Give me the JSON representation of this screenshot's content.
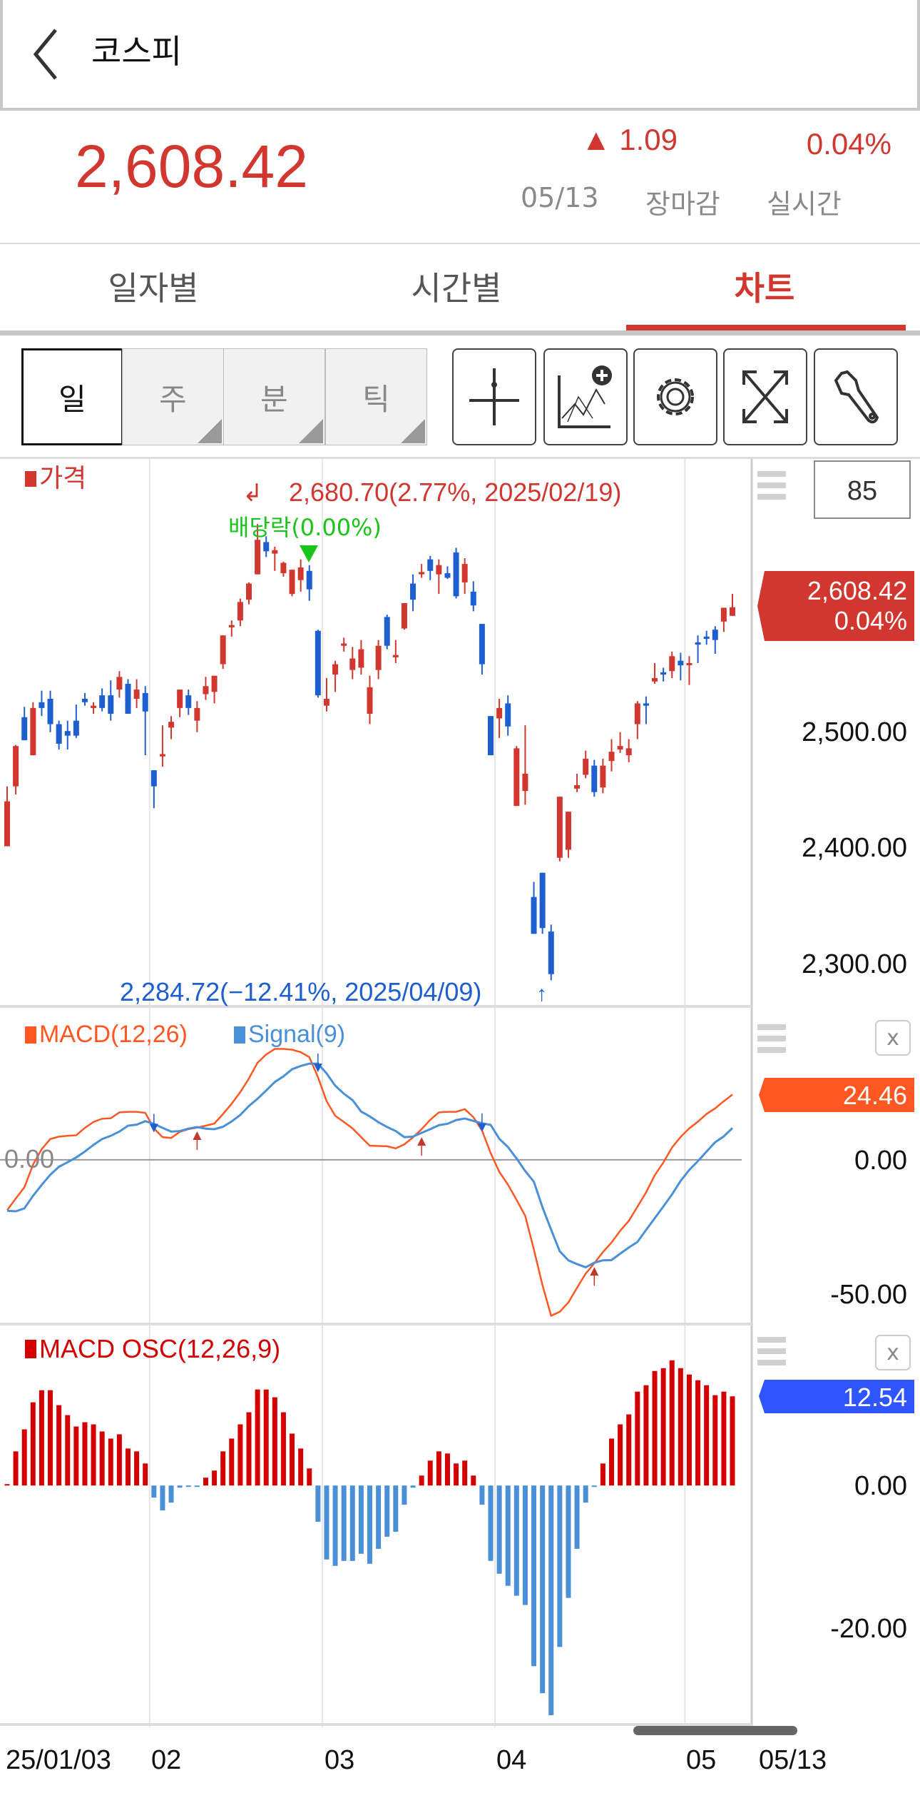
{
  "header": {
    "title": "코스피",
    "back_icon": "chevron-left-icon"
  },
  "quote": {
    "price": "2,608.42",
    "change_arrow": "▲",
    "change": "1.09",
    "rate": "0.04%",
    "date": "05/13",
    "session": "장마감",
    "mode": "실시간",
    "color_up": "#d2372f"
  },
  "tabs": [
    {
      "label": "일자별",
      "active": false
    },
    {
      "label": "시간별",
      "active": false
    },
    {
      "label": "차트",
      "active": true
    }
  ],
  "periods": [
    {
      "label": "일",
      "selected": true
    },
    {
      "label": "주",
      "selected": false
    },
    {
      "label": "분",
      "selected": false
    },
    {
      "label": "틱",
      "selected": false
    }
  ],
  "tools": [
    {
      "name": "crosshair-icon"
    },
    {
      "name": "add-indicator-icon"
    },
    {
      "name": "settings-gear-icon"
    },
    {
      "name": "expand-icon"
    },
    {
      "name": "wrench-icon"
    }
  ],
  "price_panel": {
    "legend": "가격",
    "count": "85",
    "last_price_tag": "2,608.42",
    "last_rate_tag": "0.04%",
    "high_note": "2,680.70(2.77%, 2025/02/19)",
    "low_note": "2,284.72(−12.41%, 2025/04/09)",
    "dividend_note": "배당락(0.00%)",
    "yticks": [
      "2,500.00",
      "2,400.00",
      "2,300.00"
    ]
  },
  "macd_panel": {
    "legend_macd": "MACD(12,26)",
    "legend_signal": "Signal(9)",
    "zero_label": "0.00",
    "tag": "24.46",
    "yticks": [
      "0.00",
      "-50.00"
    ],
    "close": "x"
  },
  "osc_panel": {
    "legend": "MACD OSC(12,26,9)",
    "tag": "12.54",
    "yticks": [
      "0.00",
      "-20.00"
    ],
    "close": "x"
  },
  "xaxis": {
    "labels": [
      "25/01/03",
      "02",
      "03",
      "04",
      "05"
    ],
    "current": "05/13"
  },
  "colors": {
    "up": "#d2372f",
    "down": "#1e5fd0",
    "macd": "#ff5722",
    "signal": "#4a90d9",
    "osc_up": "#d40000",
    "osc_down": "#4a90d9",
    "osc_tag": "#2f55ff",
    "dividend": "#1bc41b"
  },
  "chart_data": [
    {
      "type": "candlestick",
      "title": "가격",
      "yticks": [
        2500,
        2400,
        2300
      ],
      "ylim": [
        2262,
        2739
      ],
      "month_breaks_after": [
        17,
        37,
        57,
        79
      ],
      "ohlc": [
        [
          2401,
          2453,
          2401,
          2440
        ],
        [
          2453,
          2489,
          2446,
          2488
        ],
        [
          2513,
          2522,
          2493,
          2493
        ],
        [
          2480,
          2526,
          2480,
          2521
        ],
        [
          2526,
          2536,
          2514,
          2521
        ],
        [
          2529,
          2536,
          2500,
          2507
        ],
        [
          2507,
          2510,
          2485,
          2490
        ],
        [
          2501,
          2510,
          2485,
          2497
        ],
        [
          2510,
          2524,
          2495,
          2497
        ],
        [
          2529,
          2534,
          2523,
          2526
        ],
        [
          2521,
          2526,
          2516,
          2523
        ],
        [
          2532,
          2538,
          2518,
          2521
        ],
        [
          2532,
          2545,
          2510,
          2516
        ],
        [
          2537,
          2553,
          2530,
          2548
        ],
        [
          2542,
          2546,
          2516,
          2516
        ],
        [
          2529,
          2546,
          2521,
          2537
        ],
        [
          2534,
          2540,
          2480,
          2518
        ],
        [
          2467,
          2467,
          2434,
          2453
        ],
        [
          2479,
          2506,
          2470,
          2481
        ],
        [
          2504,
          2514,
          2494,
          2509
        ],
        [
          2521,
          2537,
          2513,
          2537
        ],
        [
          2532,
          2537,
          2515,
          2521
        ],
        [
          2510,
          2527,
          2500,
          2521
        ],
        [
          2533,
          2548,
          2528,
          2540
        ],
        [
          2535,
          2549,
          2525,
          2549
        ],
        [
          2559,
          2584,
          2555,
          2584
        ],
        [
          2591,
          2597,
          2583,
          2593
        ],
        [
          2597,
          2616,
          2592,
          2613
        ],
        [
          2615,
          2630,
          2611,
          2629
        ],
        [
          2637,
          2680.7,
          2637,
          2667
        ],
        [
          2665,
          2670,
          2652,
          2657
        ],
        [
          2655,
          2661,
          2640,
          2658
        ],
        [
          2638,
          2648,
          2635,
          2647
        ],
        [
          2620,
          2641,
          2618,
          2641
        ],
        [
          2632,
          2650,
          2622,
          2643
        ],
        [
          2640,
          2645,
          2614,
          2624
        ],
        [
          2588,
          2589,
          2530,
          2532
        ],
        [
          2523,
          2547,
          2518,
          2529
        ],
        [
          2550,
          2562,
          2535,
          2559
        ],
        [
          2575,
          2582,
          2570,
          2577
        ],
        [
          2554,
          2574,
          2546,
          2564
        ],
        [
          2556,
          2580,
          2550,
          2572
        ],
        [
          2516,
          2549,
          2507,
          2539
        ],
        [
          2554,
          2580,
          2546,
          2575
        ],
        [
          2600,
          2602,
          2572,
          2575
        ],
        [
          2565,
          2580,
          2560,
          2567
        ],
        [
          2590,
          2612,
          2589,
          2612
        ],
        [
          2629,
          2637,
          2605,
          2615
        ],
        [
          2637,
          2646,
          2634,
          2639
        ],
        [
          2650,
          2653,
          2632,
          2640
        ],
        [
          2637,
          2650,
          2620,
          2645
        ],
        [
          2638,
          2644,
          2633,
          2634
        ],
        [
          2656,
          2660,
          2616,
          2618
        ],
        [
          2630,
          2651,
          2620,
          2646
        ],
        [
          2622,
          2631,
          2605,
          2610
        ],
        [
          2594,
          2594,
          2550,
          2559
        ],
        [
          2514,
          2514,
          2480,
          2480
        ],
        [
          2512,
          2529,
          2495,
          2521
        ],
        [
          2525,
          2532,
          2497,
          2505
        ],
        [
          2436,
          2488,
          2436,
          2486
        ],
        [
          2449,
          2506,
          2437,
          2464
        ],
        [
          2357,
          2370,
          2325,
          2325
        ],
        [
          2378,
          2378,
          2325,
          2330
        ],
        [
          2327,
          2333,
          2284.72,
          2290
        ],
        [
          2391,
          2444,
          2388,
          2444
        ],
        [
          2398,
          2431,
          2391,
          2431
        ],
        [
          2451,
          2464,
          2448,
          2454
        ],
        [
          2463,
          2484,
          2460,
          2477
        ],
        [
          2471,
          2476,
          2444,
          2448
        ],
        [
          2452,
          2477,
          2447,
          2471
        ],
        [
          2475,
          2494,
          2466,
          2483
        ],
        [
          2485,
          2500,
          2482,
          2488
        ],
        [
          2480,
          2494,
          2474,
          2486
        ],
        [
          2507,
          2527,
          2494,
          2525
        ],
        [
          2525,
          2531,
          2507,
          2523
        ],
        [
          2544,
          2560,
          2542,
          2547
        ],
        [
          2552,
          2556,
          2544,
          2550
        ],
        [
          2553,
          2570,
          2547,
          2566
        ],
        [
          2562,
          2569,
          2545,
          2558
        ],
        [
          2559,
          2566,
          2541,
          2560
        ],
        [
          2578,
          2584,
          2560,
          2576
        ],
        [
          2583,
          2588,
          2576,
          2581
        ],
        [
          2589,
          2592,
          2568,
          2580
        ],
        [
          2596,
          2608,
          2587,
          2608
        ],
        [
          2601,
          2620,
          2601,
          2608.42
        ]
      ],
      "high_index": 30,
      "low_index": 64,
      "dividend_index": 36
    },
    {
      "type": "line",
      "series": [
        {
          "name": "MACD(12,26)",
          "values": [
            -18.9,
            -14.5,
            -10.3,
            -1.8,
            4,
            7.8,
            8.7,
            9.0,
            9.2,
            12,
            14.2,
            15.4,
            15.6,
            17.8,
            18,
            18,
            17.6,
            11.8,
            8.5,
            8.2,
            10.5,
            11.5,
            12.1,
            12.8,
            13.6,
            17.2,
            21,
            25.4,
            30.5,
            36.4,
            39.5,
            41.6,
            41.6,
            41.3,
            40.4,
            38.5,
            31,
            22,
            16.5,
            14.2,
            11.8,
            8.5,
            5.3,
            5.2,
            5.1,
            4.3,
            5.8,
            8.4,
            11.5,
            15,
            17.8,
            18,
            18,
            19,
            16,
            11,
            2.5,
            -4.5,
            -9.3,
            -15,
            -21,
            -33.6,
            -47,
            -58.5,
            -57,
            -53.5,
            -48,
            -42.7,
            -38.8,
            -34.6,
            -31,
            -26.6,
            -22.9,
            -17.6,
            -12.2,
            -5.8,
            -1,
            4.6,
            8.6,
            11.8,
            14.3,
            17.2,
            19.3,
            22,
            24.46
          ]
        },
        {
          "name": "Signal(9)",
          "values": [
            -19.1,
            -19.3,
            -18.2,
            -13.5,
            -9.4,
            -5.6,
            -2.6,
            -0.9,
            0.9,
            3.1,
            5.6,
            7.8,
            9.0,
            10.6,
            12.8,
            13.2,
            14.5,
            13.5,
            12.0,
            10.6,
            10.8,
            11.7,
            12.3,
            11.7,
            11.5,
            12.4,
            14.4,
            16.8,
            20.2,
            22.9,
            26.0,
            29.2,
            31.3,
            34.0,
            35.2,
            36.1,
            36.1,
            32.4,
            27.8,
            24.8,
            22.4,
            18.1,
            16.3,
            14.1,
            12.3,
            10.8,
            8.5,
            8.7,
            10.1,
            11.5,
            13.0,
            13.5,
            14.9,
            15.5,
            14.6,
            13.7,
            13.1,
            7.9,
            4.8,
            0.5,
            -4.2,
            -8.2,
            -17.8,
            -26.2,
            -34.3,
            -37.7,
            -39.1,
            -40.3,
            -38.6,
            -37.7,
            -37.6,
            -35.2,
            -32.9,
            -30.8,
            -26.3,
            -21.9,
            -17.5,
            -13.0,
            -7.9,
            -3.8,
            -0.5,
            3.1,
            6.6,
            8.8,
            11.92
          ]
        }
      ],
      "ylim": [
        -61.6,
        57
      ],
      "yticks": [
        0,
        -50
      ],
      "dead_cross_index": [
        18,
        37,
        56
      ],
      "golden_cross_index": [
        23,
        49,
        69
      ]
    },
    {
      "type": "bar",
      "title": "MACD OSC(12,26,9)",
      "ylim": [
        -34,
        22.5
      ],
      "yticks": [
        0,
        -20
      ],
      "values": [
        0.2,
        4.8,
        7.9,
        11.7,
        13.4,
        13.4,
        11.3,
        9.9,
        8.3,
        8.9,
        8.6,
        7.6,
        6.6,
        7.2,
        5.2,
        4.8,
        3.1,
        -1.7,
        -3.5,
        -2.4,
        -0.3,
        -0.2,
        -0.2,
        1.1,
        2.1,
        4.8,
        6.6,
        8.6,
        10.3,
        13.5,
        13.5,
        12.4,
        10.3,
        7.3,
        5.2,
        2.4,
        -5.1,
        -10.4,
        -11.3,
        -10.6,
        -10.6,
        -9.6,
        -11.0,
        -8.9,
        -7.2,
        -6.5,
        -2.7,
        -0.3,
        1.4,
        3.5,
        4.8,
        4.5,
        3.1,
        3.5,
        1.4,
        -2.7,
        -10.6,
        -12.4,
        -14.1,
        -15.5,
        -16.8,
        -25.4,
        -29.2,
        -32.3,
        -22.7,
        -15.8,
        -8.9,
        -2.4,
        -0.2,
        3.1,
        6.6,
        8.6,
        10.0,
        13.2,
        14.1,
        16.1,
        16.5,
        17.6,
        16.5,
        15.6,
        14.8,
        14.1,
        12.7,
        13.2,
        12.54
      ]
    }
  ]
}
